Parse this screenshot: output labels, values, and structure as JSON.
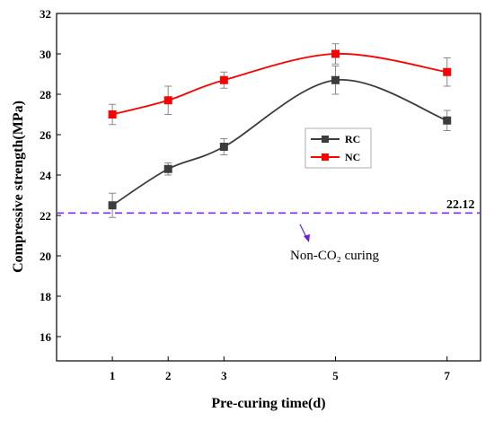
{
  "chart_data": {
    "type": "line",
    "title": "",
    "xlabel": "Pre-curing time(d)",
    "ylabel": "Compressive strength(MPa)",
    "x": [
      1,
      2,
      3,
      5,
      7
    ],
    "xticks": [
      "1",
      "2",
      "3",
      "5",
      "7"
    ],
    "xlim": [
      0,
      7.6
    ],
    "ylim": [
      14.8,
      32
    ],
    "yticks": [
      16,
      18,
      20,
      22,
      24,
      26,
      28,
      30,
      32
    ],
    "grid": false,
    "legend_position": "center-right",
    "series": [
      {
        "name": "RC",
        "color": "#3c3c3c",
        "marker": "square",
        "values": [
          22.5,
          24.3,
          25.4,
          28.7,
          26.7
        ],
        "error": [
          0.6,
          0.3,
          0.4,
          0.7,
          0.5
        ]
      },
      {
        "name": "NC",
        "color": "#ff0000",
        "marker": "square",
        "values": [
          27.0,
          27.7,
          28.7,
          30.0,
          29.1
        ],
        "error": [
          0.5,
          0.7,
          0.4,
          0.5,
          0.7
        ]
      }
    ],
    "reference_line": {
      "value": 22.12,
      "label": "22.12",
      "color": "#7b2ff7",
      "style": "dashed"
    },
    "annotation": {
      "text": "Non-CO₂ curing",
      "arrow_color": "#6a1fd8"
    }
  }
}
